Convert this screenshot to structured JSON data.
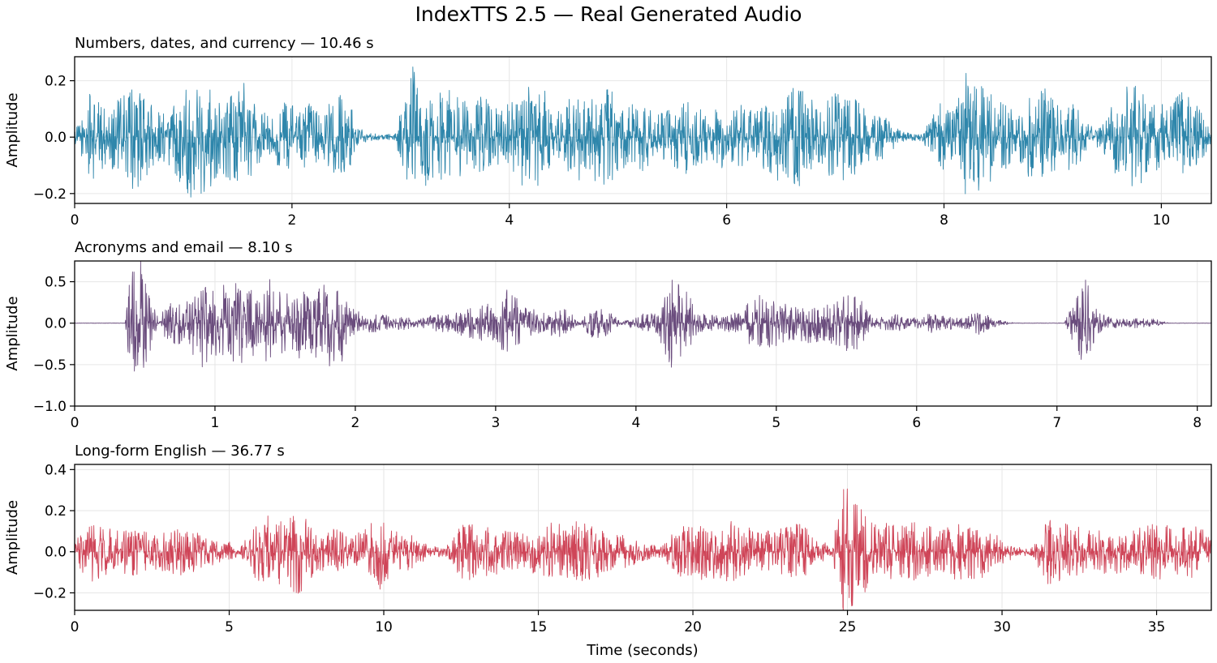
{
  "figure": {
    "title": "IndexTTS 2.5 — Real Generated Audio",
    "xlabel": "Time (seconds)"
  },
  "chart_data": [
    {
      "type": "line",
      "title": "Numbers, dates, and currency — 10.46 s",
      "ylabel": "Amplitude",
      "color": "#2e86ab",
      "duration": 10.46,
      "xlim": [
        0,
        10.46
      ],
      "ylim": [
        -0.235,
        0.285
      ],
      "xticks": [
        0,
        2,
        4,
        6,
        8,
        10
      ],
      "yticks": [
        -0.2,
        0.0,
        0.2
      ],
      "ytick_labels": [
        "−0.2",
        "0.0",
        "0.2"
      ],
      "grid": true,
      "envelope": {
        "t": [
          0,
          0.1,
          0.15,
          0.3,
          0.4,
          0.55,
          0.7,
          0.85,
          0.95,
          1.05,
          1.2,
          1.35,
          1.45,
          1.55,
          1.65,
          1.8,
          1.95,
          2.05,
          2.15,
          2.3,
          2.45,
          2.55,
          2.6,
          2.7,
          2.8,
          2.95,
          3.05,
          3.1,
          3.2,
          3.35,
          3.5,
          3.65,
          3.75,
          3.85,
          4.0,
          4.15,
          4.3,
          4.45,
          4.6,
          4.75,
          4.9,
          5.05,
          5.2,
          5.35,
          5.5,
          5.65,
          5.8,
          5.95,
          6.1,
          6.25,
          6.4,
          6.55,
          6.7,
          6.85,
          7.0,
          7.15,
          7.3,
          7.45,
          7.6,
          7.7,
          7.8,
          7.95,
          8.1,
          8.2,
          8.35,
          8.5,
          8.65,
          8.8,
          8.95,
          9.1,
          9.2,
          9.3,
          9.45,
          9.6,
          9.75,
          9.9,
          10.05,
          10.2,
          10.35,
          10.46
        ],
        "amp": [
          0.02,
          0.1,
          0.17,
          0.09,
          0.14,
          0.2,
          0.12,
          0.09,
          0.15,
          0.22,
          0.2,
          0.14,
          0.16,
          0.21,
          0.12,
          0.08,
          0.14,
          0.09,
          0.12,
          0.1,
          0.16,
          0.11,
          0.04,
          0.015,
          0.01,
          0.01,
          0.18,
          0.26,
          0.2,
          0.16,
          0.17,
          0.1,
          0.16,
          0.12,
          0.12,
          0.19,
          0.18,
          0.1,
          0.16,
          0.14,
          0.2,
          0.11,
          0.13,
          0.08,
          0.1,
          0.14,
          0.09,
          0.11,
          0.12,
          0.1,
          0.14,
          0.17,
          0.18,
          0.1,
          0.16,
          0.15,
          0.09,
          0.08,
          0.02,
          0.015,
          0.015,
          0.12,
          0.1,
          0.23,
          0.18,
          0.14,
          0.09,
          0.15,
          0.19,
          0.1,
          0.14,
          0.05,
          0.04,
          0.16,
          0.2,
          0.12,
          0.14,
          0.18,
          0.1,
          0.02
        ]
      }
    },
    {
      "type": "line",
      "title": "Acronyms and email — 8.10 s",
      "ylabel": "Amplitude",
      "color": "#6a4c7d",
      "duration": 8.1,
      "xlim": [
        0,
        8.1
      ],
      "ylim": [
        -1.0,
        0.75
      ],
      "xticks": [
        0,
        1,
        2,
        3,
        4,
        5,
        6,
        7,
        8
      ],
      "yticks": [
        -1.0,
        -0.5,
        0.0,
        0.5
      ],
      "ytick_labels": [
        "−1.0",
        "−0.5",
        "0.0",
        "0.5"
      ],
      "grid": true,
      "envelope": {
        "t": [
          0,
          0.36,
          0.38,
          0.45,
          0.55,
          0.6,
          0.65,
          0.8,
          0.9,
          1.0,
          1.1,
          1.2,
          1.3,
          1.4,
          1.5,
          1.6,
          1.7,
          1.8,
          1.9,
          1.95,
          2.05,
          2.2,
          2.35,
          2.45,
          2.55,
          2.7,
          2.85,
          3.0,
          3.1,
          3.2,
          3.35,
          3.5,
          3.6,
          3.7,
          3.8,
          3.9,
          4.05,
          4.15,
          4.25,
          4.35,
          4.45,
          4.55,
          4.7,
          4.85,
          5.0,
          5.1,
          5.25,
          5.35,
          5.5,
          5.6,
          5.7,
          5.85,
          5.95,
          6.1,
          6.3,
          6.45,
          6.55,
          6.7,
          6.9,
          7.05,
          7.2,
          7.3,
          7.4,
          7.55,
          7.7,
          7.8,
          8.1
        ],
        "amp": [
          0.0,
          0.0,
          0.4,
          0.9,
          0.3,
          0.05,
          0.25,
          0.3,
          0.55,
          0.4,
          0.5,
          0.5,
          0.35,
          0.6,
          0.35,
          0.45,
          0.4,
          0.55,
          0.5,
          0.2,
          0.12,
          0.1,
          0.08,
          0.05,
          0.1,
          0.12,
          0.2,
          0.25,
          0.45,
          0.2,
          0.15,
          0.18,
          0.02,
          0.2,
          0.15,
          0.02,
          0.12,
          0.12,
          0.55,
          0.45,
          0.12,
          0.1,
          0.12,
          0.35,
          0.3,
          0.2,
          0.25,
          0.22,
          0.35,
          0.3,
          0.05,
          0.12,
          0.05,
          0.12,
          0.06,
          0.15,
          0.05,
          0.0,
          0.0,
          0.0,
          0.55,
          0.12,
          0.06,
          0.06,
          0.05,
          0.0,
          0.0
        ]
      }
    },
    {
      "type": "line",
      "title": "Long-form English — 36.77 s",
      "ylabel": "Amplitude",
      "color": "#cf4558",
      "duration": 36.77,
      "xlim": [
        0,
        36.77
      ],
      "ylim": [
        -0.285,
        0.425
      ],
      "xticks": [
        0,
        5,
        10,
        15,
        20,
        25,
        30,
        35
      ],
      "yticks": [
        -0.2,
        0.0,
        0.2,
        0.4
      ],
      "ytick_labels": [
        "−0.2",
        "0.0",
        "0.2",
        "0.4"
      ],
      "grid": true,
      "envelope": {
        "t": [
          0,
          0.5,
          1,
          1.5,
          2,
          2.5,
          3,
          3.5,
          4,
          4.5,
          5,
          5.3,
          5.8,
          6.2,
          6.8,
          7.2,
          7.6,
          8,
          8.5,
          9,
          9.5,
          9.9,
          10.3,
          10.8,
          11.5,
          12,
          12.5,
          13,
          13.5,
          14,
          14.5,
          15,
          15.5,
          16,
          16.5,
          17,
          17.5,
          18,
          18.5,
          19,
          19.5,
          20,
          20.5,
          21,
          21.5,
          22,
          22.5,
          23,
          23.5,
          24,
          24.5,
          24.9,
          25.3,
          25.8,
          26.5,
          27,
          27.5,
          28,
          28.5,
          29,
          29.5,
          30,
          30.5,
          31,
          31.5,
          32,
          32.5,
          33,
          33.5,
          34,
          34.5,
          35,
          35.5,
          36,
          36.5,
          36.77
        ],
        "amp": [
          0.05,
          0.15,
          0.12,
          0.1,
          0.13,
          0.08,
          0.1,
          0.12,
          0.09,
          0.07,
          0.05,
          0.02,
          0.12,
          0.18,
          0.15,
          0.22,
          0.14,
          0.1,
          0.12,
          0.08,
          0.12,
          0.2,
          0.1,
          0.09,
          0.03,
          0.02,
          0.13,
          0.14,
          0.12,
          0.1,
          0.09,
          0.12,
          0.15,
          0.16,
          0.14,
          0.12,
          0.1,
          0.07,
          0.04,
          0.03,
          0.12,
          0.15,
          0.13,
          0.14,
          0.16,
          0.12,
          0.1,
          0.12,
          0.14,
          0.06,
          0.03,
          0.34,
          0.25,
          0.15,
          0.14,
          0.15,
          0.13,
          0.12,
          0.14,
          0.15,
          0.12,
          0.06,
          0.02,
          0.02,
          0.18,
          0.14,
          0.12,
          0.1,
          0.12,
          0.1,
          0.12,
          0.14,
          0.12,
          0.13,
          0.12,
          0.05
        ]
      }
    }
  ]
}
